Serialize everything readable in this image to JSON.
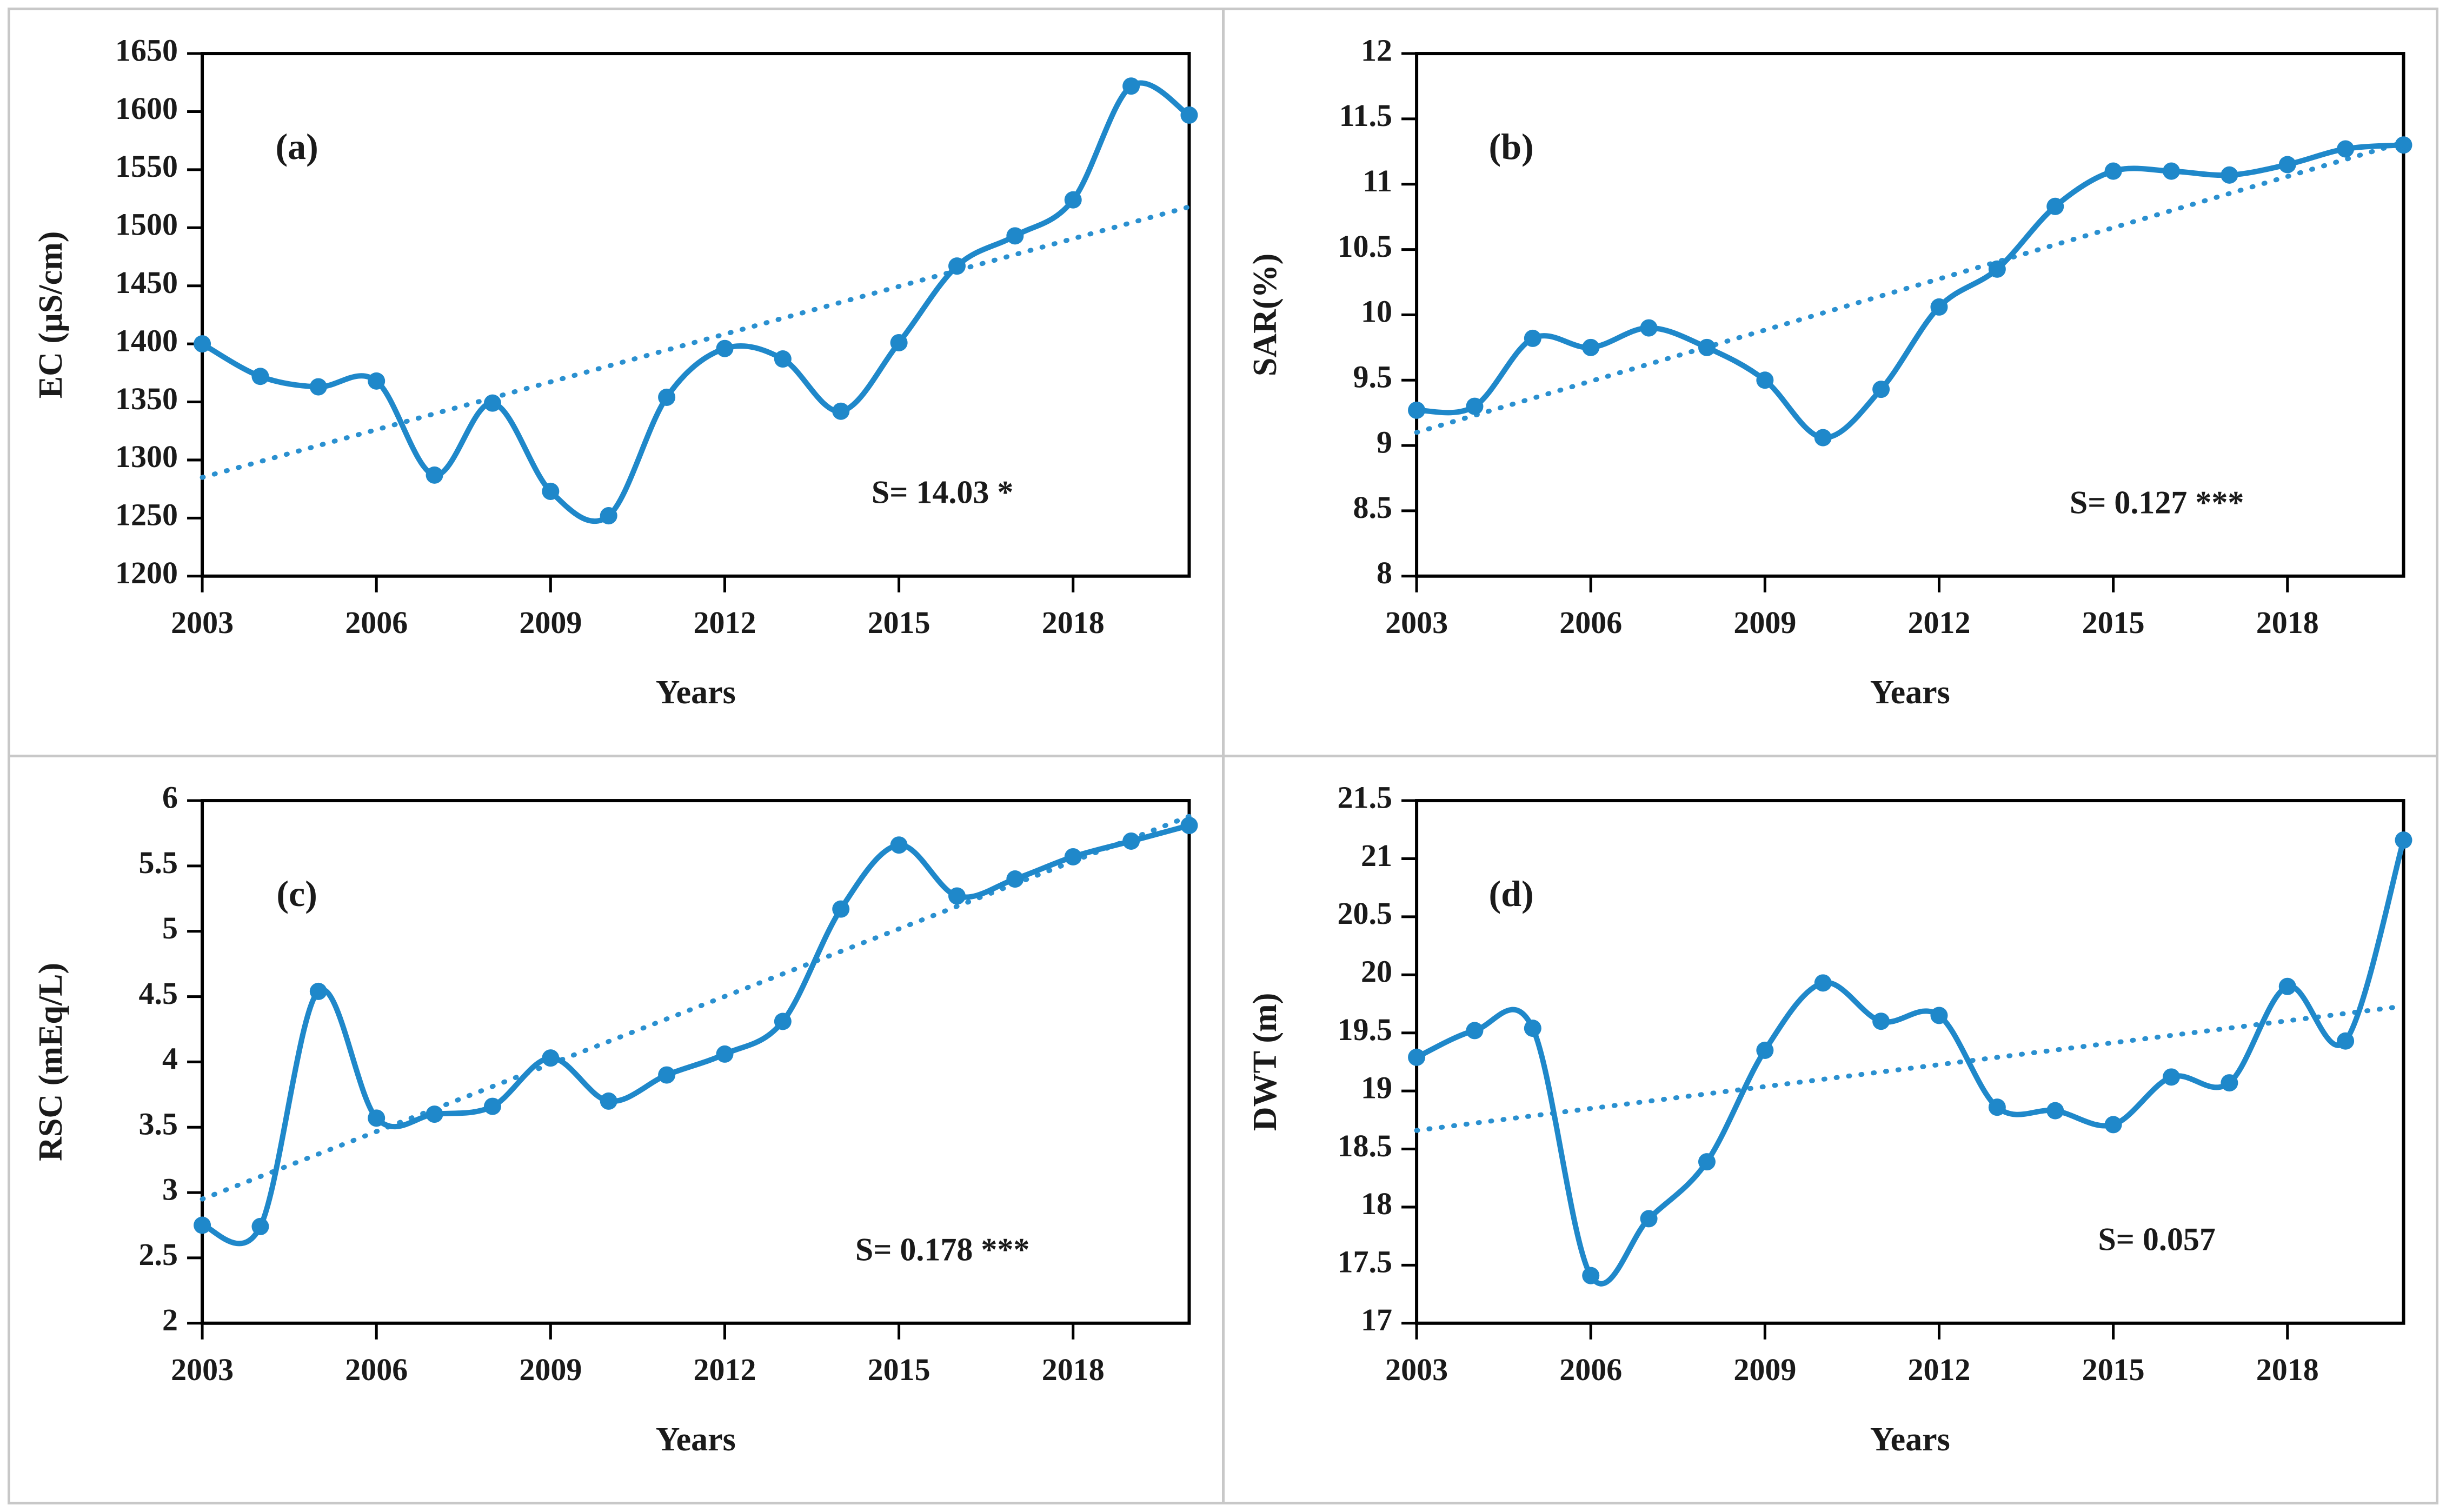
{
  "figure": {
    "name": "groundwater-quality-trends-2003-2020",
    "layout": "2x2-panel-grid",
    "colors": {
      "series_line": "#1f88ca",
      "trend_line": "#2a90d0",
      "axis": "#000000",
      "text": "#1a1a1a",
      "panel_divider": "#c8c8c8",
      "background": "#ffffff"
    }
  },
  "chart_data": [
    {
      "type": "line",
      "panel_label": "(a)",
      "ylabel": "EC (µS/cm)",
      "xlabel": "Years",
      "x": [
        2003,
        2004,
        2005,
        2006,
        2007,
        2008,
        2009,
        2010,
        2011,
        2012,
        2013,
        2014,
        2015,
        2016,
        2017,
        2018,
        2019,
        2020
      ],
      "values": [
        1400,
        1372,
        1363,
        1368,
        1287,
        1349,
        1273,
        1252,
        1354,
        1396,
        1387,
        1342,
        1401,
        1467,
        1493,
        1524,
        1622,
        1597
      ],
      "ylim": [
        1200,
        1650
      ],
      "ytick_step": 50,
      "xticks": [
        2003,
        2006,
        2009,
        2012,
        2015,
        2018
      ],
      "trend": {
        "type": "linear-dotted",
        "start": 1285,
        "end": 1518
      },
      "annotation": "S= 14.03 *",
      "annotation_pos": {
        "fx": 0.75,
        "fy": 0.86
      },
      "grid": false,
      "legend": "none",
      "marker": "circle"
    },
    {
      "type": "line",
      "panel_label": "(b)",
      "ylabel": "SAR(%)",
      "xlabel": "Years",
      "x": [
        2003,
        2004,
        2005,
        2006,
        2007,
        2008,
        2009,
        2010,
        2011,
        2012,
        2013,
        2014,
        2015,
        2016,
        2017,
        2018,
        2019,
        2020
      ],
      "values": [
        9.27,
        9.3,
        9.82,
        9.75,
        9.9,
        9.75,
        9.5,
        9.06,
        9.43,
        10.06,
        10.35,
        10.83,
        11.1,
        11.1,
        11.07,
        11.15,
        11.27,
        11.3
      ],
      "ylim": [
        8,
        12
      ],
      "ytick_step": 0.5,
      "xticks": [
        2003,
        2006,
        2009,
        2012,
        2015,
        2018
      ],
      "trend": {
        "type": "linear-dotted",
        "start": 9.1,
        "end": 11.32
      },
      "annotation": "S= 0.127 ***",
      "annotation_pos": {
        "fx": 0.75,
        "fy": 0.88
      },
      "grid": false,
      "legend": "none",
      "marker": "circle"
    },
    {
      "type": "line",
      "panel_label": "(c)",
      "ylabel": "RSC (mEq/L)",
      "xlabel": "Years",
      "x": [
        2003,
        2004,
        2005,
        2006,
        2007,
        2008,
        2009,
        2010,
        2011,
        2012,
        2013,
        2014,
        2015,
        2016,
        2017,
        2018,
        2019,
        2020
      ],
      "values": [
        2.75,
        2.74,
        4.54,
        3.57,
        3.6,
        3.66,
        4.03,
        3.7,
        3.9,
        4.06,
        4.31,
        5.17,
        5.66,
        5.27,
        5.4,
        5.57,
        5.69,
        5.81
      ],
      "ylim": [
        2,
        6
      ],
      "ytick_step": 0.5,
      "xticks": [
        2003,
        2006,
        2009,
        2012,
        2015,
        2018
      ],
      "trend": {
        "type": "linear-dotted",
        "start": 2.95,
        "end": 5.88
      },
      "annotation": "S= 0.178 ***",
      "annotation_pos": {
        "fx": 0.75,
        "fy": 0.88
      },
      "grid": false,
      "legend": "none",
      "marker": "circle"
    },
    {
      "type": "line",
      "panel_label": "(d)",
      "ylabel": "DWT (m)",
      "xlabel": "Years",
      "x": [
        2003,
        2004,
        2005,
        2006,
        2007,
        2008,
        2009,
        2010,
        2011,
        2012,
        2013,
        2014,
        2015,
        2016,
        2017,
        2018,
        2019,
        2020
      ],
      "values": [
        19.29,
        19.52,
        19.54,
        17.41,
        17.9,
        18.39,
        19.35,
        19.93,
        19.6,
        19.65,
        18.86,
        18.83,
        18.71,
        19.12,
        19.07,
        19.9,
        19.43,
        21.16
      ],
      "ylim": [
        17,
        21.5
      ],
      "ytick_step": 0.5,
      "xticks": [
        2003,
        2006,
        2009,
        2012,
        2015,
        2018
      ],
      "trend": {
        "type": "linear-dotted",
        "start": 18.66,
        "end": 19.73
      },
      "annotation": "S= 0.057",
      "annotation_pos": {
        "fx": 0.75,
        "fy": 0.86
      },
      "grid": false,
      "legend": "none",
      "marker": "circle"
    }
  ]
}
